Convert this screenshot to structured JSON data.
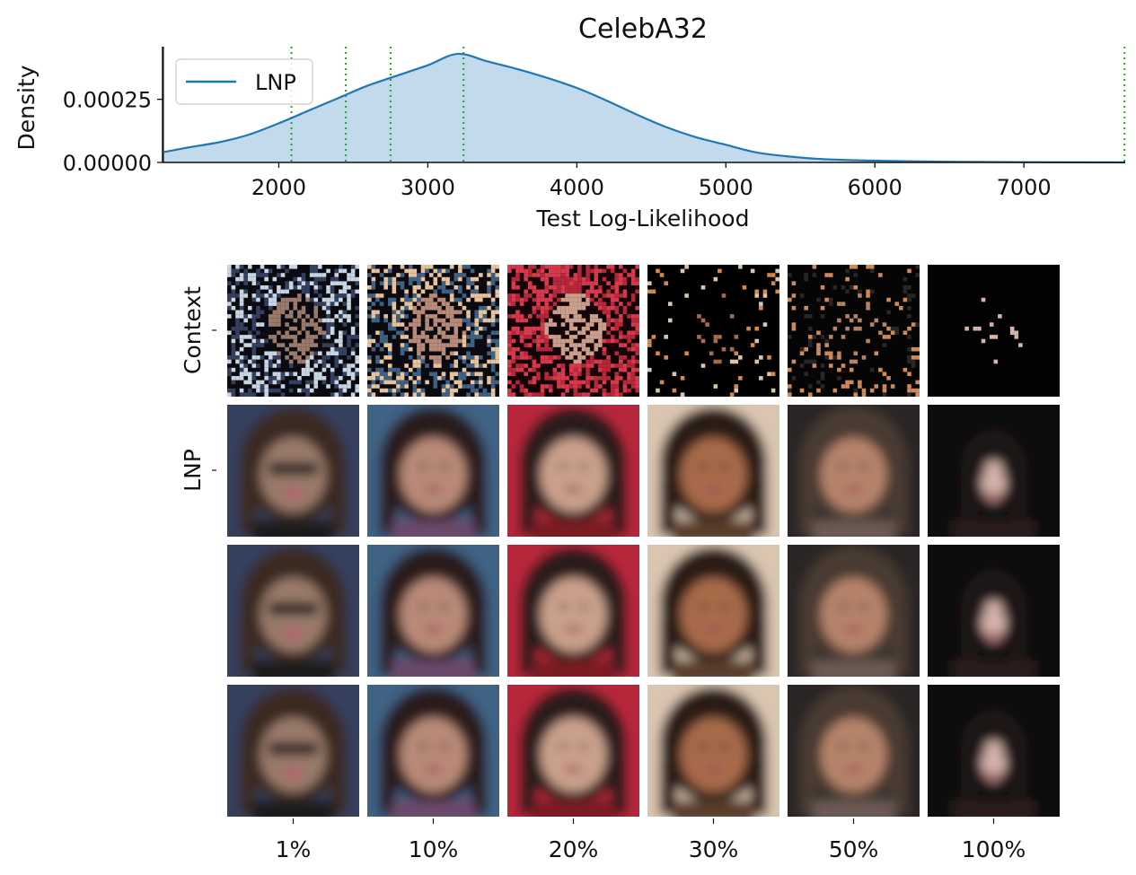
{
  "chart_data": {
    "type": "area",
    "title": "CelebA32",
    "xlabel": "Test Log-Likelihood",
    "ylabel": "Density",
    "xlim": [
      1220,
      7680
    ],
    "ylim": [
      0,
      0.00043
    ],
    "xticks": [
      "2000",
      "3000",
      "4000",
      "5000",
      "6000",
      "7000"
    ],
    "yticks": [
      "0.00000",
      "0.00025"
    ],
    "legend": {
      "location": "top-left",
      "entries": [
        "LNP"
      ]
    },
    "series": [
      {
        "name": "LNP",
        "color": "#1f77b4",
        "x": [
          1220,
          1400,
          1600,
          1800,
          2000,
          2200,
          2400,
          2600,
          2800,
          3000,
          3200,
          3400,
          3600,
          3800,
          4000,
          4200,
          4400,
          4600,
          4800,
          5000,
          5200,
          5400,
          5600,
          5800,
          6000,
          6200,
          6500,
          7000,
          7680
        ],
        "y": [
          4e-05,
          6e-05,
          8e-05,
          0.00011,
          0.000155,
          0.000205,
          0.000255,
          0.000305,
          0.000345,
          0.000385,
          0.00043,
          0.0004,
          0.00037,
          0.000335,
          0.000295,
          0.000245,
          0.00019,
          0.00014,
          0.0001,
          7e-05,
          4e-05,
          2.5e-05,
          1.5e-05,
          1e-05,
          7e-06,
          5e-06,
          3e-06,
          1e-06,
          0.0
        ]
      }
    ],
    "vlines": [
      {
        "x": 1225,
        "style": "solid",
        "color": "#2ca02c"
      },
      {
        "x": 2085,
        "style": "dotted",
        "color": "#2ca02c"
      },
      {
        "x": 2450,
        "style": "dotted",
        "color": "#2ca02c"
      },
      {
        "x": 2750,
        "style": "dotted",
        "color": "#2ca02c"
      },
      {
        "x": 3240,
        "style": "dotted",
        "color": "#2ca02c"
      },
      {
        "x": 7675,
        "style": "dotted",
        "color": "#2ca02c"
      }
    ]
  },
  "grid": {
    "row_labels": [
      "Context",
      "LNP",
      "",
      ""
    ],
    "column_labels": [
      "1%",
      "10%",
      "20%",
      "30%",
      "50%",
      "100%"
    ],
    "columns": [
      {
        "bg": "#34405e",
        "face": "#9a7a6a",
        "hair": "#3a2a22",
        "accent": "#1a1a1a",
        "context_bg": "#0a0a10",
        "context_pixels": "#c7d6e2"
      },
      {
        "bg": "#3f6284",
        "face": "#b98a78",
        "hair": "#2c1f1a",
        "accent": "#6a4a6a",
        "context_bg": "#0a0a10",
        "context_pixels": "#e9c39a"
      },
      {
        "bg": "#b7273a",
        "face": "#caa08c",
        "hair": "#2a1d1a",
        "accent": "#7a1a24",
        "context_bg": "#140408",
        "context_pixels": "#d8394c"
      },
      {
        "bg": "#d9c5b0",
        "face": "#a76a4a",
        "hair": "#2a1a12",
        "accent": "#5a3c2a",
        "context_bg": "#000000",
        "context_pixels": "#d8874a"
      },
      {
        "bg": "#2a2626",
        "face": "#b5836a",
        "hair": "#4a3a32",
        "accent": "#6a5a52",
        "context_bg": "#050505",
        "context_pixels": "#d08a5a"
      },
      {
        "bg": "#0b0808",
        "face": "#d4b4aa",
        "hair": "#1a1212",
        "accent": "#2a1d1d",
        "context_bg": "#020202",
        "context_pixels": "#e0b0b8"
      }
    ]
  }
}
